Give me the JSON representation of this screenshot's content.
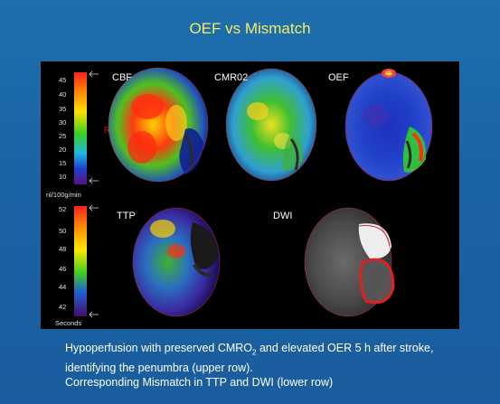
{
  "slide": {
    "title": "OEF vs Mismatch",
    "caption": {
      "line1_a": "Hypoperfusion with preserved CMRO",
      "line1_sub": "2",
      "line1_b": " and elevated OER 5 h after stroke,",
      "line2": "identifying the penumbra (upper row).",
      "line3": "Corresponding Mismatch in TTP and DWI (lower row)"
    }
  },
  "figure": {
    "top_scale": {
      "ticks": [
        "45",
        "40",
        "35",
        "30",
        "25",
        "20",
        "15",
        "10"
      ],
      "unit": "nl/100g/min",
      "marker": "R"
    },
    "bottom_scale": {
      "ticks": [
        "52",
        "50",
        "48",
        "46",
        "44",
        "42"
      ],
      "unit": "Seconds"
    },
    "images": {
      "cbf": "CBF",
      "cmro2": "CMR02",
      "oef": "OEF",
      "ttp": "TTP",
      "dwi": "DWI"
    }
  },
  "colors": {
    "title": "#f2ee62",
    "background": "#1e6fae",
    "panel": "#000000"
  }
}
